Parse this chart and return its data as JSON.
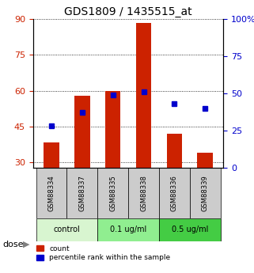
{
  "title": "GDS1809 / 1435515_at",
  "samples": [
    "GSM88334",
    "GSM88337",
    "GSM88335",
    "GSM88338",
    "GSM88336",
    "GSM88339"
  ],
  "groups": [
    {
      "label": "control",
      "indices": [
        0,
        1
      ],
      "color": "#d8f5d0"
    },
    {
      "label": "0.1 ug/ml",
      "indices": [
        2,
        3
      ],
      "color": "#90ee90"
    },
    {
      "label": "0.5 ug/ml",
      "indices": [
        4,
        5
      ],
      "color": "#44cc44"
    }
  ],
  "count_values": [
    38.5,
    58.0,
    60.0,
    88.5,
    42.0,
    34.0
  ],
  "percentile_values": [
    28,
    37,
    49,
    51,
    43,
    40
  ],
  "left_ylim": [
    28,
    90
  ],
  "left_yticks": [
    30,
    45,
    60,
    75,
    90
  ],
  "right_ylim": [
    0,
    100
  ],
  "right_yticks": [
    0,
    25,
    50,
    75,
    100
  ],
  "right_yticklabels": [
    "0",
    "25",
    "50",
    "75",
    "100%"
  ],
  "bar_color": "#cc2200",
  "dot_color": "#0000cc",
  "xlabel_color": "#cc2200",
  "ylabel_right_color": "#0000cc",
  "grid_color": "#000000",
  "sample_bg_color": "#cccccc",
  "dose_label": "dose",
  "legend_count": "count",
  "legend_percentile": "percentile rank within the sample"
}
